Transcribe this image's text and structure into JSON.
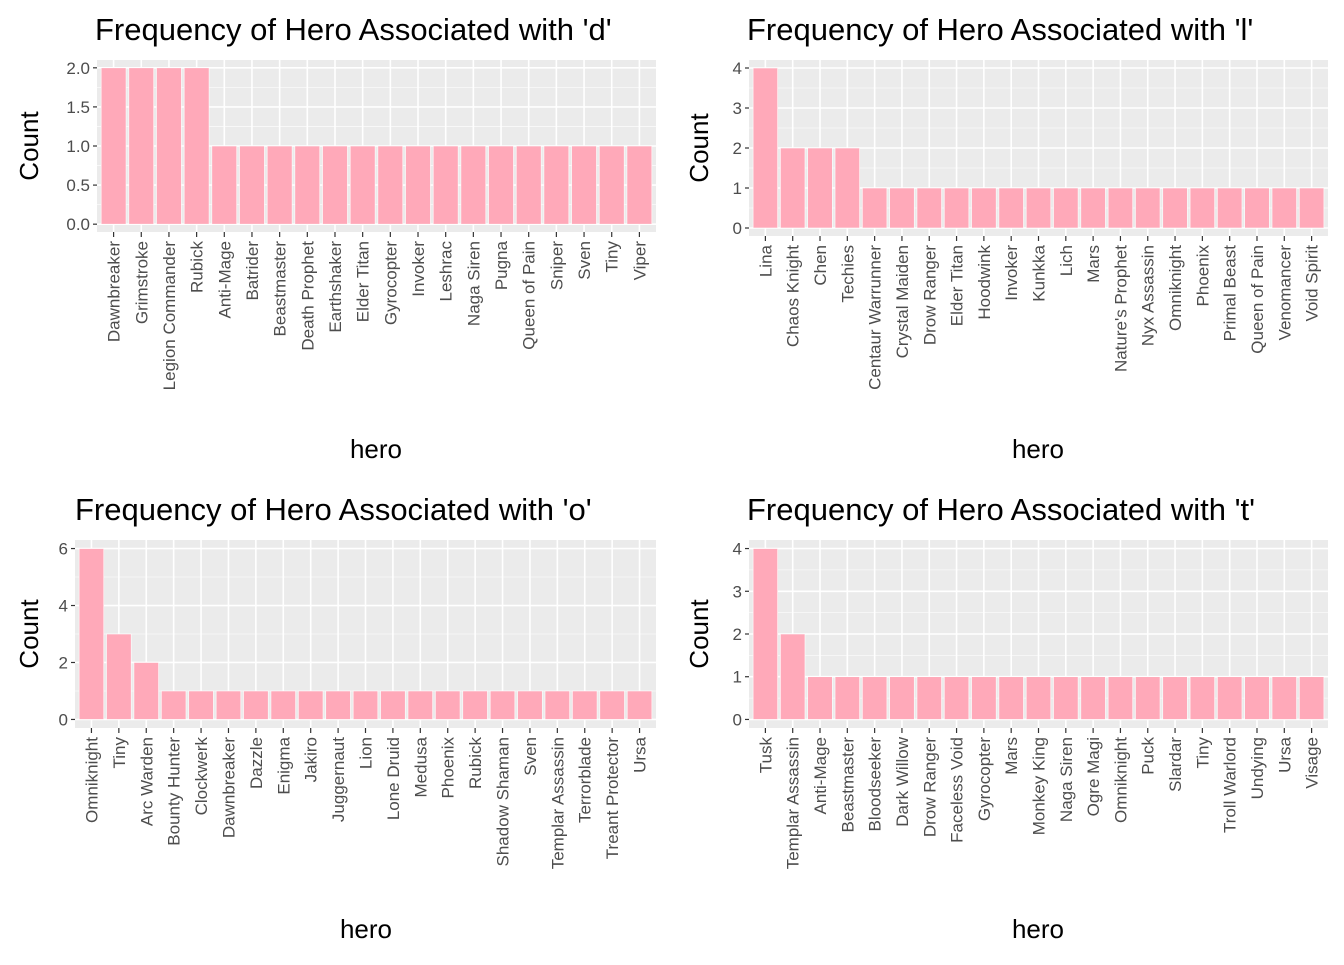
{
  "colors": {
    "bar_fill": "#ffa9b9",
    "panel_bg": "#ebebeb",
    "grid_major": "#ffffff",
    "tick_text": "#4d4d4d"
  },
  "chart_data": [
    {
      "type": "bar",
      "title": "Frequency of Hero Associated with 'd'",
      "xlabel": "hero",
      "ylabel": "Count",
      "ylim": [
        0,
        2.0
      ],
      "yticks": [
        "0.0",
        "0.5",
        "1.0",
        "1.5",
        "2.0"
      ],
      "grid": true,
      "categories": [
        "Dawnbreaker",
        "Grimstroke",
        "Legion Commander",
        "Rubick",
        "Anti-Mage",
        "Batrider",
        "Beastmaster",
        "Death Prophet",
        "Earthshaker",
        "Elder Titan",
        "Gyrocopter",
        "Invoker",
        "Leshrac",
        "Naga Siren",
        "Pugna",
        "Queen of Pain",
        "Sniper",
        "Sven",
        "Tiny",
        "Viper"
      ],
      "values": [
        2,
        2,
        2,
        2,
        1,
        1,
        1,
        1,
        1,
        1,
        1,
        1,
        1,
        1,
        1,
        1,
        1,
        1,
        1,
        1
      ]
    },
    {
      "type": "bar",
      "title": "Frequency of Hero Associated with 'l'",
      "xlabel": "hero",
      "ylabel": "Count",
      "ylim": [
        0,
        4
      ],
      "yticks": [
        "0",
        "1",
        "2",
        "3",
        "4"
      ],
      "grid": true,
      "categories": [
        "Lina",
        "Chaos Knight",
        "Chen",
        "Techies",
        "Centaur Warrunner",
        "Crystal Maiden",
        "Drow Ranger",
        "Elder Titan",
        "Hoodwink",
        "Invoker",
        "Kunkka",
        "Lich",
        "Mars",
        "Nature's Prophet",
        "Nyx Assassin",
        "Omniknight",
        "Phoenix",
        "Primal Beast",
        "Queen of Pain",
        "Venomancer",
        "Void Spirit"
      ],
      "values": [
        4,
        2,
        2,
        2,
        1,
        1,
        1,
        1,
        1,
        1,
        1,
        1,
        1,
        1,
        1,
        1,
        1,
        1,
        1,
        1,
        1
      ]
    },
    {
      "type": "bar",
      "title": "Frequency of Hero Associated with 'o'",
      "xlabel": "hero",
      "ylabel": "Count",
      "ylim": [
        0,
        6
      ],
      "yticks": [
        "0",
        "2",
        "4",
        "6"
      ],
      "grid": true,
      "categories": [
        "Omniknight",
        "Tiny",
        "Arc Warden",
        "Bounty Hunter",
        "Clockwerk",
        "Dawnbreaker",
        "Dazzle",
        "Enigma",
        "Jakiro",
        "Juggernaut",
        "Lion",
        "Lone Druid",
        "Medusa",
        "Phoenix",
        "Rubick",
        "Shadow Shaman",
        "Sven",
        "Templar Assassin",
        "Terrorblade",
        "Treant Protector",
        "Ursa"
      ],
      "values": [
        6,
        3,
        2,
        1,
        1,
        1,
        1,
        1,
        1,
        1,
        1,
        1,
        1,
        1,
        1,
        1,
        1,
        1,
        1,
        1,
        1
      ]
    },
    {
      "type": "bar",
      "title": "Frequency of Hero Associated with 't'",
      "xlabel": "hero",
      "ylabel": "Count",
      "ylim": [
        0,
        4
      ],
      "yticks": [
        "0",
        "1",
        "2",
        "3",
        "4"
      ],
      "grid": true,
      "categories": [
        "Tusk",
        "Templar Assassin",
        "Anti-Mage",
        "Beastmaster",
        "Bloodseeker",
        "Dark Willow",
        "Drow Ranger",
        "Faceless Void",
        "Gyrocopter",
        "Mars",
        "Monkey King",
        "Naga Siren",
        "Ogre Magi",
        "Omniknight",
        "Puck",
        "Slardar",
        "Tiny",
        "Troll Warlord",
        "Undying",
        "Ursa",
        "Visage"
      ],
      "values": [
        4,
        2,
        1,
        1,
        1,
        1,
        1,
        1,
        1,
        1,
        1,
        1,
        1,
        1,
        1,
        1,
        1,
        1,
        1,
        1,
        1
      ]
    }
  ]
}
